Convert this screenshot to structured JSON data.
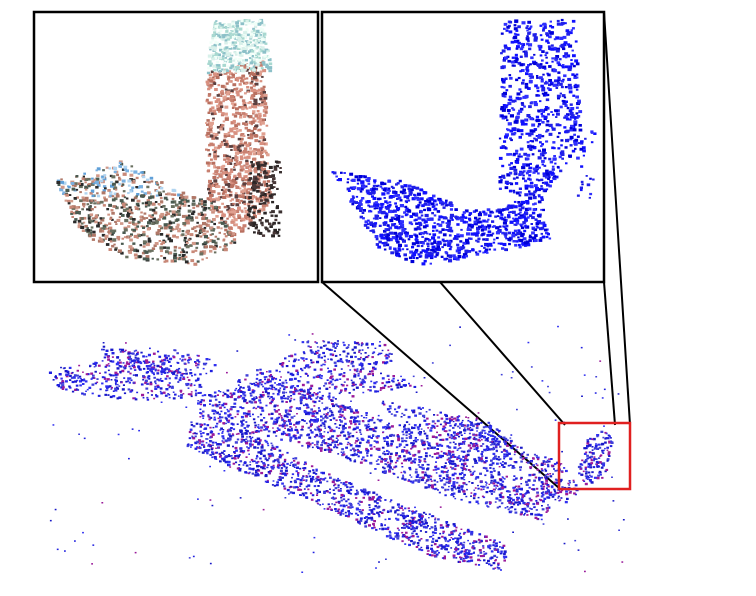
{
  "figure": {
    "panels": [
      {
        "id": "colored-tower",
        "color_mode": "rgb"
      },
      {
        "id": "blue-tower",
        "color": "#1a1aff"
      }
    ],
    "overview": {
      "point_color": "#2020e0",
      "accent_color": "#9a1a9a"
    },
    "highlight_box_color": "#e02020",
    "connector_color": "#000000"
  }
}
